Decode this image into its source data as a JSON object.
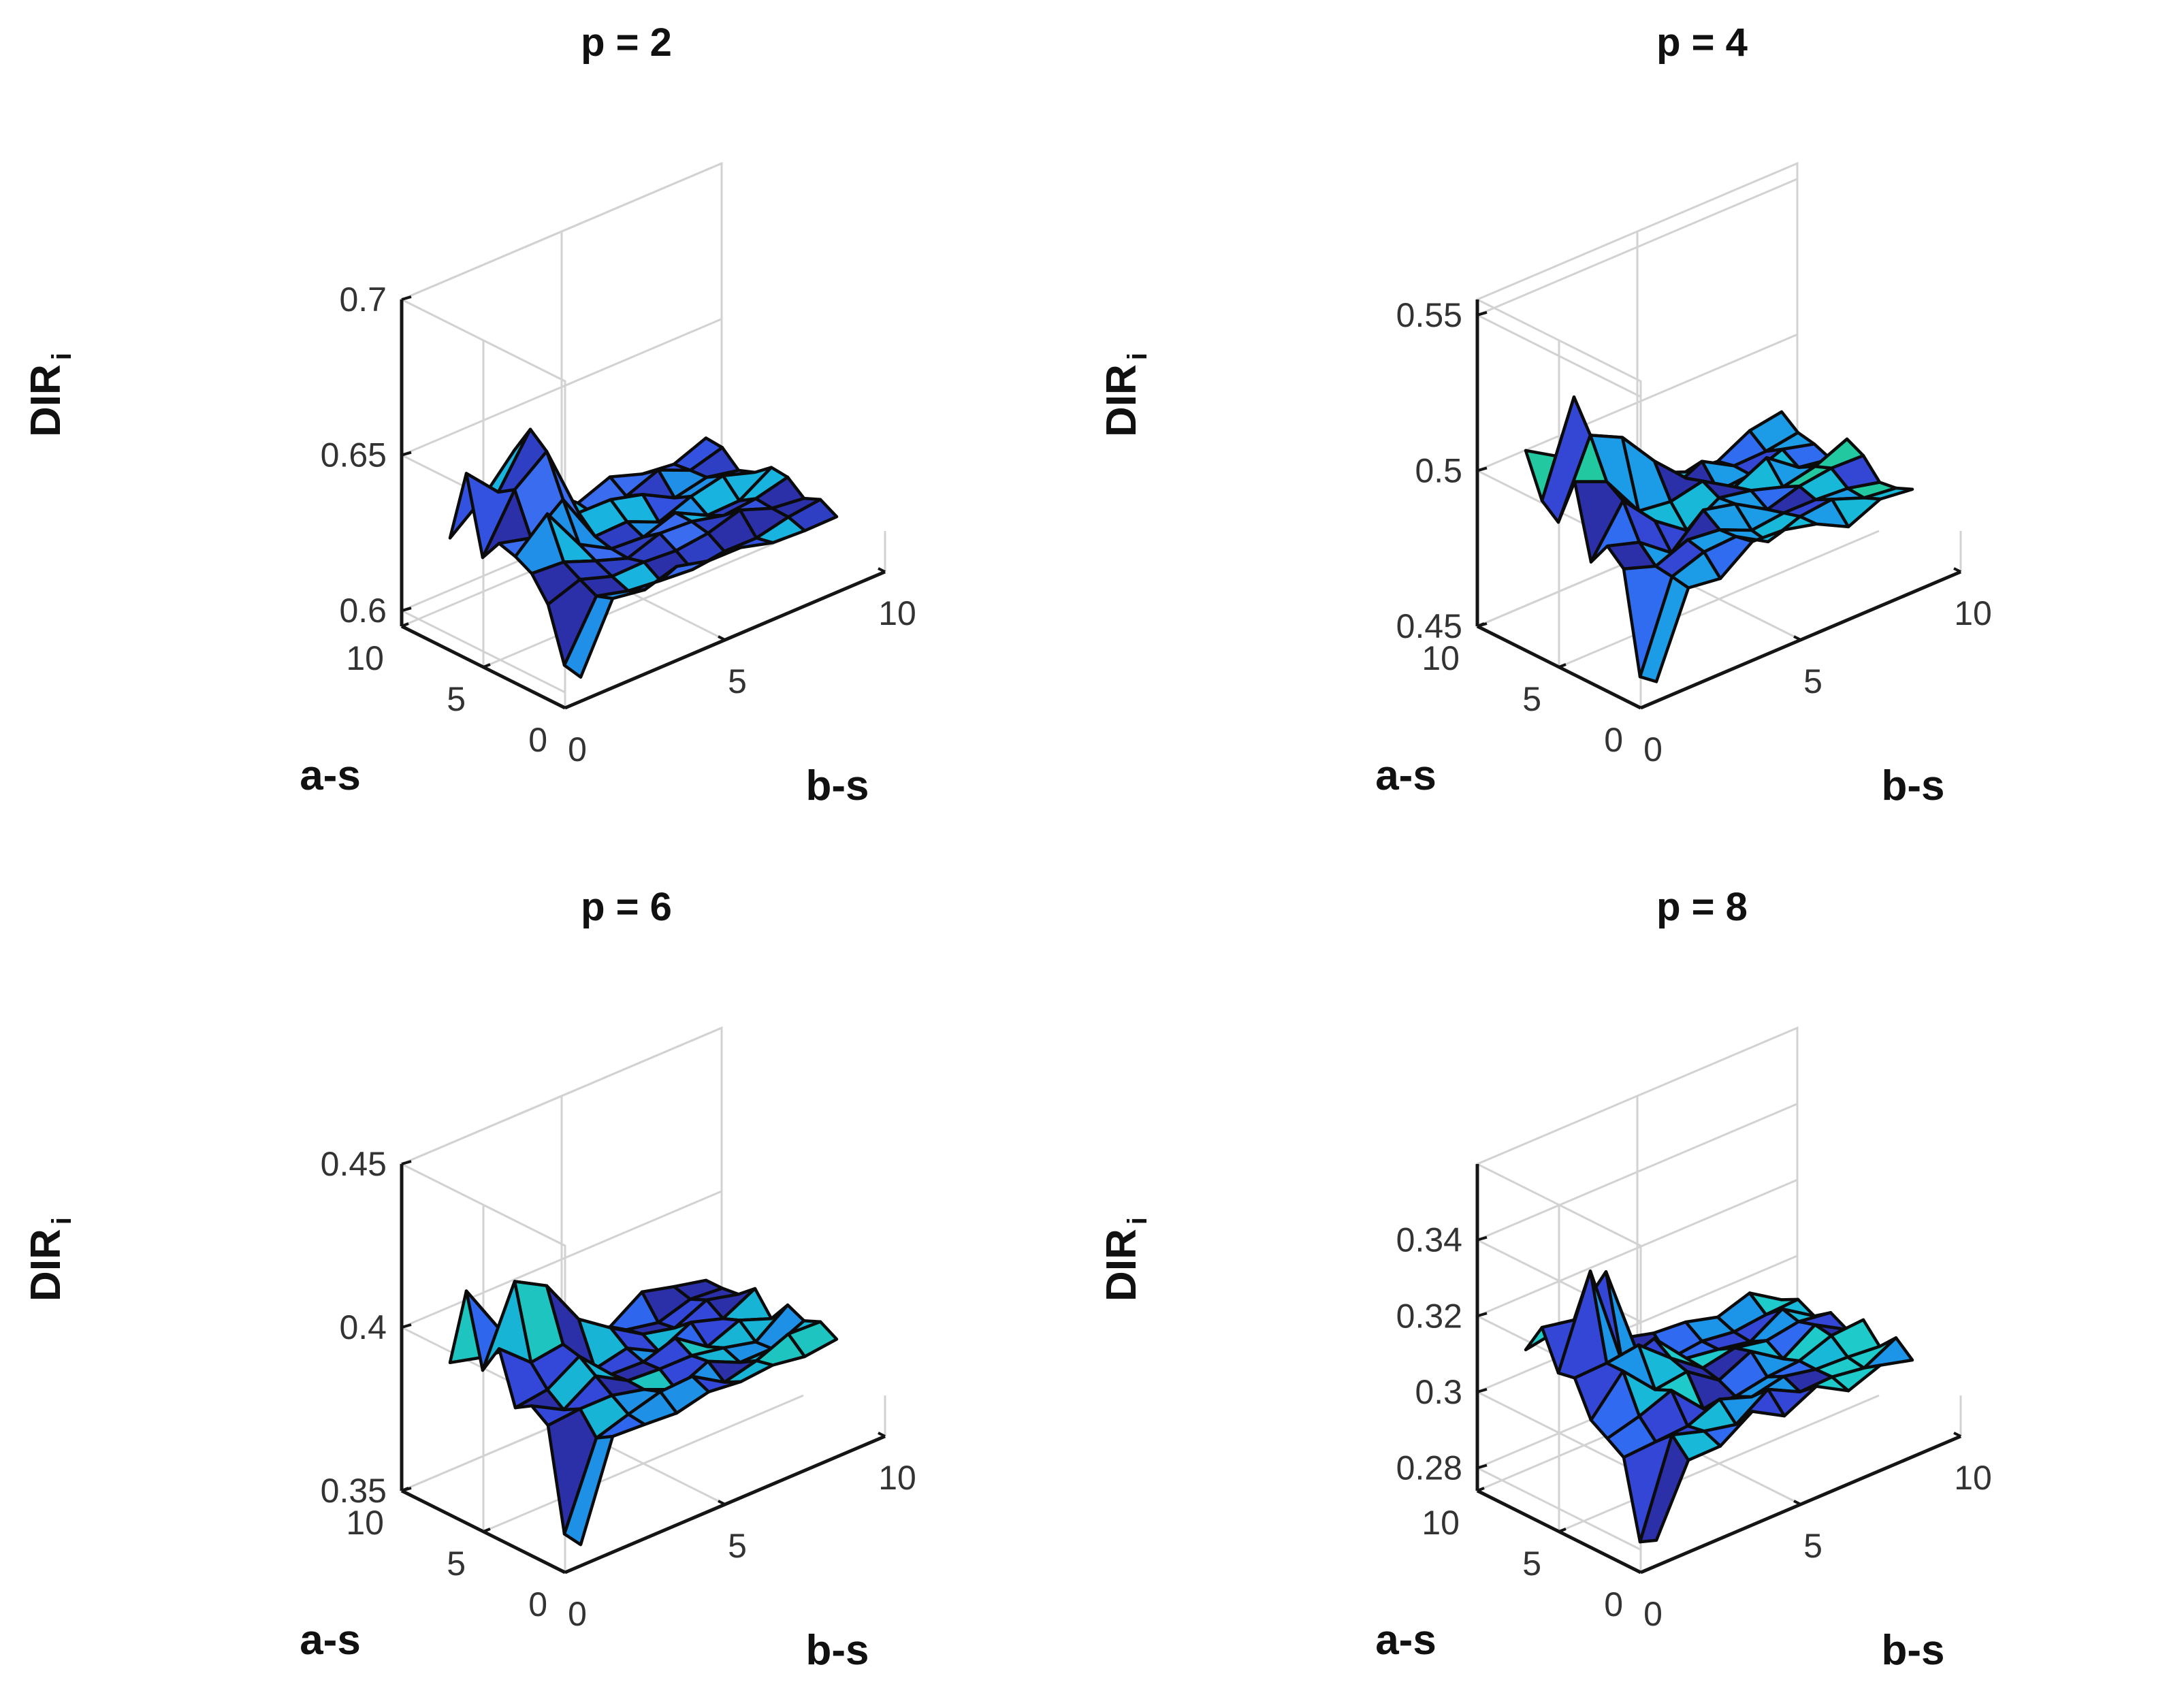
{
  "chart_data": [
    {
      "type": "surface3d",
      "title": "p = 2",
      "xlabel": "b-s",
      "ylabel": "a-s",
      "zlabel": "DIR",
      "zlabel_sub": "i",
      "xticks": [
        "0",
        "5",
        "10"
      ],
      "yticks": [
        "0",
        "5",
        "10"
      ],
      "zticks": [
        "0.6",
        "0.65",
        "0.7"
      ],
      "zlim": [
        0.595,
        0.7
      ],
      "base": 0.61,
      "spread": 0.026,
      "seed": 3,
      "colors": [
        "#2f3fc4",
        "#3452e0",
        "#3a6cf0",
        "#1f8fe8",
        "#19b3e0",
        "#2b2fa8"
      ]
    },
    {
      "type": "surface3d",
      "title": "p = 4",
      "xlabel": "b-s",
      "ylabel": "a-s",
      "zlabel": "DIR",
      "zlabel_sub": "i",
      "xticks": [
        "0",
        "5",
        "10"
      ],
      "yticks": [
        "0",
        "5",
        "10"
      ],
      "zticks": [
        "0.45",
        "0.5",
        "0.55"
      ],
      "zlim": [
        0.45,
        0.555
      ],
      "base": 0.472,
      "spread": 0.03,
      "seed": 11,
      "colors": [
        "#3346d4",
        "#2f6cf0",
        "#1c9ce6",
        "#18b8d8",
        "#22c9a0",
        "#2b2fa8"
      ]
    },
    {
      "type": "surface3d",
      "title": "p = 6",
      "xlabel": "b-s",
      "ylabel": "a-s",
      "zlabel": "DIR",
      "zlabel_sub": "i",
      "xticks": [
        "0",
        "5",
        "10"
      ],
      "yticks": [
        "0",
        "5",
        "10"
      ],
      "zticks": [
        "0.35",
        "0.4",
        "0.45"
      ],
      "zlim": [
        0.35,
        0.45
      ],
      "base": 0.375,
      "spread": 0.024,
      "seed": 23,
      "colors": [
        "#3347d8",
        "#2f66ee",
        "#1e90e6",
        "#18b4d6",
        "#1ec4c0",
        "#2b2fa8"
      ]
    },
    {
      "type": "surface3d",
      "title": "p = 8",
      "xlabel": "b-s",
      "ylabel": "a-s",
      "zlabel": "DIR",
      "zlabel_sub": "i",
      "xticks": [
        "0",
        "5",
        "10"
      ],
      "yticks": [
        "0",
        "5",
        "10"
      ],
      "zticks": [
        "0.28",
        "0.3",
        "0.32",
        "0.34"
      ],
      "zlim": [
        0.274,
        0.36
      ],
      "base": 0.292,
      "spread": 0.02,
      "seed": 37,
      "colors": [
        "#3446d6",
        "#2f6af0",
        "#1c94e8",
        "#18b8d8",
        "#1ecaca",
        "#2b2fa8"
      ]
    }
  ]
}
